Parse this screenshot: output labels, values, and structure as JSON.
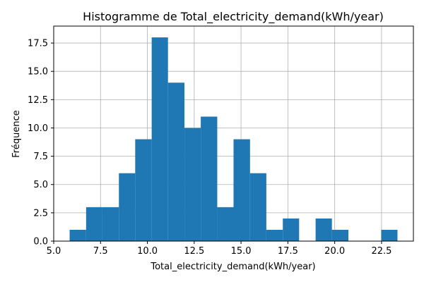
{
  "chart_data": {
    "type": "bar",
    "title": "Histogramme de Total_electricity_demand(kWh/year)",
    "xlabel": "Total_electricity_demand(kWh/year)",
    "ylabel": "Fréquence",
    "xlim": [
      5.0,
      24.2
    ],
    "ylim": [
      0,
      19
    ],
    "xticks": [
      5.0,
      7.5,
      10.0,
      12.5,
      15.0,
      17.5,
      20.0,
      22.5
    ],
    "yticks": [
      0.0,
      2.5,
      5.0,
      7.5,
      10.0,
      12.5,
      15.0,
      17.5
    ],
    "grid": true,
    "bar_color": "#1f77b4",
    "bins": [
      {
        "x0": 5.85,
        "x1": 6.73,
        "count": 1
      },
      {
        "x0": 6.73,
        "x1": 7.6,
        "count": 3
      },
      {
        "x0": 7.6,
        "x1": 8.48,
        "count": 3
      },
      {
        "x0": 8.48,
        "x1": 9.35,
        "count": 6
      },
      {
        "x0": 9.35,
        "x1": 10.23,
        "count": 9
      },
      {
        "x0": 10.23,
        "x1": 11.1,
        "count": 18
      },
      {
        "x0": 11.1,
        "x1": 11.98,
        "count": 14
      },
      {
        "x0": 11.98,
        "x1": 12.85,
        "count": 10
      },
      {
        "x0": 12.85,
        "x1": 13.73,
        "count": 11
      },
      {
        "x0": 13.73,
        "x1": 14.6,
        "count": 3
      },
      {
        "x0": 14.6,
        "x1": 15.48,
        "count": 9
      },
      {
        "x0": 15.48,
        "x1": 16.35,
        "count": 6
      },
      {
        "x0": 16.35,
        "x1": 17.23,
        "count": 1
      },
      {
        "x0": 17.23,
        "x1": 18.1,
        "count": 2
      },
      {
        "x0": 18.1,
        "x1": 18.98,
        "count": 0
      },
      {
        "x0": 18.98,
        "x1": 19.85,
        "count": 2
      },
      {
        "x0": 19.85,
        "x1": 20.73,
        "count": 1
      },
      {
        "x0": 20.73,
        "x1": 21.6,
        "count": 0
      },
      {
        "x0": 21.6,
        "x1": 22.48,
        "count": 0
      },
      {
        "x0": 22.48,
        "x1": 23.35,
        "count": 1
      }
    ]
  }
}
